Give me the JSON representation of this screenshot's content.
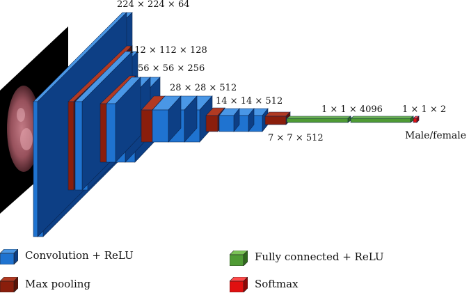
{
  "dimension_labels": {
    "conv1": "224 × 224 × 64",
    "conv2": "112 × 112 × 128",
    "conv3": "56 × 56 × 256",
    "conv4": "28 × 28 × 512",
    "conv5": "14 × 14 × 512",
    "pool5": "7 × 7 × 512",
    "fc": "1 × 1 × 4096",
    "output": "1 × 1 × 2",
    "class": "Male/female"
  },
  "legend": {
    "conv": "Convolution + ReLU",
    "pool": "Max pooling",
    "fc": "Fully connected + ReLU",
    "softmax": "Softmax"
  },
  "colors": {
    "conv_front": "#1f73d0",
    "conv_side": "#0d3f85",
    "conv_top": "#4a97e6",
    "pool_front": "#8a1e0c",
    "pool_side": "#5a1206",
    "pool_top": "#b23a22",
    "fc_front": "#4f9b34",
    "fc_side": "#2f6a1c",
    "fc_top": "#7bc357",
    "softmax_front": "#e01010",
    "softmax_side": "#8f0606",
    "softmax_top": "#ff4a4a"
  }
}
